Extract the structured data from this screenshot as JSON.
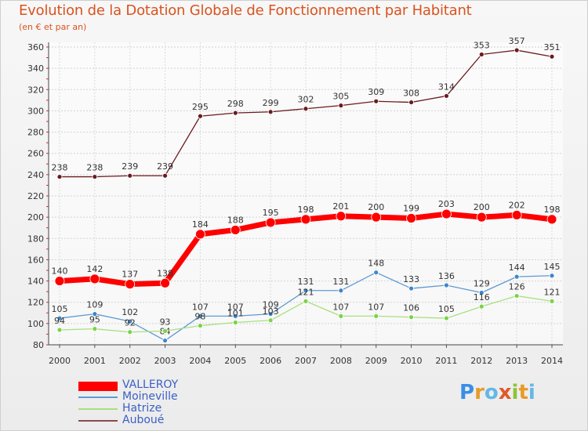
{
  "chart_data": {
    "type": "line",
    "title": "Evolution de la Dotation Globale de Fonctionnement par Habitant",
    "subtitle": "(en € et par an)",
    "xlabel": "",
    "ylabel": "",
    "ylim": [
      80,
      360
    ],
    "y_ticks": [
      80,
      100,
      120,
      140,
      160,
      180,
      200,
      220,
      240,
      260,
      280,
      300,
      320,
      340,
      360
    ],
    "grid": true,
    "legend_position": "bottom-left",
    "x": [
      "2000",
      "2001",
      "2002",
      "2003",
      "2004",
      "2005",
      "2006",
      "2007",
      "2008",
      "2009",
      "2010",
      "2011",
      "2012",
      "2013",
      "2014"
    ],
    "series": [
      {
        "name": "Auboué",
        "color": "#6b1a1f",
        "values": [
          238,
          238,
          239,
          239,
          295,
          298,
          299,
          302,
          305,
          309,
          308,
          314,
          353,
          357,
          351
        ]
      },
      {
        "name": "Moineville",
        "color": "#3f86c8",
        "values": [
          105,
          109,
          102,
          84,
          107,
          107,
          109,
          131,
          131,
          148,
          133,
          136,
          129,
          144,
          145
        ]
      },
      {
        "name": "Hatrize",
        "color": "#7bd24a",
        "values": [
          94,
          95,
          92,
          93,
          98,
          101,
          103,
          121,
          107,
          107,
          106,
          105,
          116,
          126,
          121
        ]
      },
      {
        "name": "VALLEROY",
        "color": "#ff0000",
        "values": [
          140,
          142,
          137,
          138,
          184,
          188,
          195,
          198,
          201,
          200,
          199,
          203,
          200,
          202,
          198
        ]
      }
    ],
    "legend": [
      "VALLEROY",
      "Moineville",
      "Hatrize",
      "Auboué"
    ]
  },
  "legend_colors": [
    "#ff0000",
    "#5e9ad4",
    "#a9e07e",
    "#8a4a50"
  ],
  "logo": {
    "letters": [
      "P",
      "r",
      "o",
      "x",
      "i",
      "t",
      "i"
    ]
  }
}
